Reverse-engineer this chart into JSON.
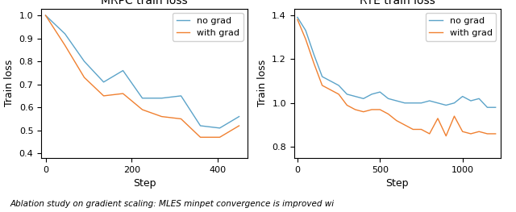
{
  "mrpc": {
    "title": "MRPC train loss",
    "xlabel": "Step",
    "ylabel": "Train loss",
    "xlim": [
      -10,
      470
    ],
    "ylim": [
      0.38,
      1.03
    ],
    "yticks": [
      0.4,
      0.5,
      0.6,
      0.7,
      0.8,
      0.9,
      1.0
    ],
    "xticks": [
      0,
      200,
      400
    ],
    "no_grad_x": [
      0,
      45,
      90,
      135,
      180,
      225,
      270,
      315,
      360,
      405,
      450
    ],
    "no_grad_y": [
      1.0,
      0.92,
      0.8,
      0.71,
      0.76,
      0.64,
      0.64,
      0.65,
      0.52,
      0.51,
      0.56
    ],
    "with_grad_x": [
      0,
      45,
      90,
      135,
      180,
      225,
      270,
      315,
      360,
      405,
      450
    ],
    "with_grad_y": [
      1.0,
      0.87,
      0.73,
      0.65,
      0.66,
      0.59,
      0.56,
      0.55,
      0.47,
      0.47,
      0.52
    ]
  },
  "rte": {
    "title": "RTE train loss",
    "xlabel": "Step",
    "ylabel": "Train loss",
    "xlim": [
      -20,
      1230
    ],
    "ylim": [
      0.75,
      1.43
    ],
    "yticks": [
      0.8,
      1.0,
      1.2,
      1.4
    ],
    "xticks": [
      0,
      500,
      1000
    ],
    "no_grad_x": [
      0,
      50,
      100,
      150,
      200,
      250,
      300,
      350,
      400,
      450,
      500,
      550,
      600,
      650,
      700,
      750,
      800,
      850,
      900,
      950,
      1000,
      1050,
      1100,
      1150,
      1200
    ],
    "no_grad_y": [
      1.39,
      1.33,
      1.22,
      1.12,
      1.1,
      1.08,
      1.04,
      1.03,
      1.02,
      1.04,
      1.05,
      1.02,
      1.01,
      1.0,
      1.0,
      1.0,
      1.01,
      1.0,
      0.99,
      1.0,
      1.03,
      1.01,
      1.02,
      0.98,
      0.98
    ],
    "with_grad_x": [
      0,
      50,
      100,
      150,
      200,
      250,
      300,
      350,
      400,
      450,
      500,
      550,
      600,
      650,
      700,
      750,
      800,
      850,
      900,
      950,
      1000,
      1050,
      1100,
      1150,
      1200
    ],
    "with_grad_y": [
      1.38,
      1.29,
      1.18,
      1.08,
      1.06,
      1.04,
      0.99,
      0.97,
      0.96,
      0.97,
      0.97,
      0.95,
      0.92,
      0.9,
      0.88,
      0.88,
      0.86,
      0.93,
      0.85,
      0.94,
      0.87,
      0.86,
      0.87,
      0.86,
      0.86
    ]
  },
  "no_grad_color": "#5ba3c9",
  "with_grad_color": "#f08030",
  "legend_labels": [
    "no grad",
    "with grad"
  ],
  "caption": "Ablation study on gradient scaling: MLES minpet convergence is improved wi",
  "fig_width": 6.4,
  "fig_height": 2.63,
  "dpi": 100
}
